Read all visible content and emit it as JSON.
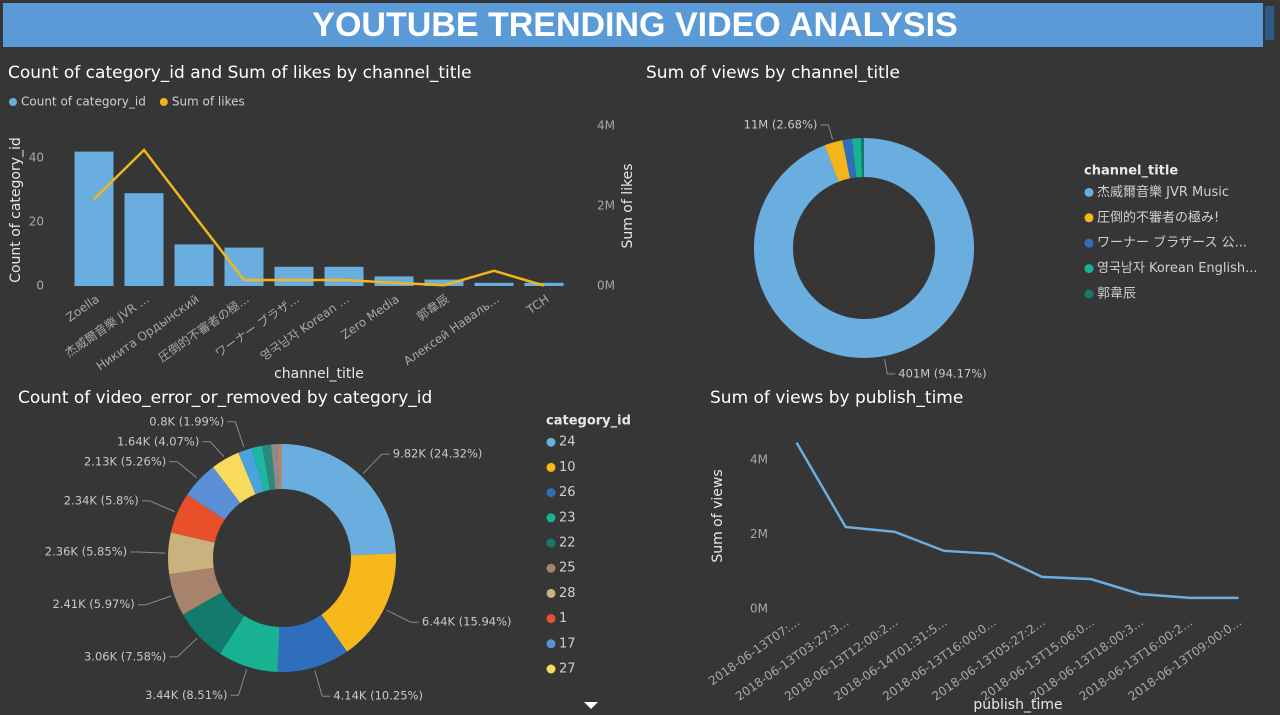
{
  "title": "YOUTUBE TRENDING VIDEO ANALYSIS",
  "chart_data": [
    {
      "type": "combo",
      "title": "Count of category_id and Sum of likes by channel_title",
      "categories": [
        "Zoella",
        "杰威爾音樂 JVR ...",
        "Никита Ордынский",
        "圧倒的不審者の極...",
        "ワーナー ブラザ...",
        "영국남자 Korean ...",
        "Zero Media",
        "郭韋辰",
        "Алексей Наваль...",
        "TCH"
      ],
      "series": [
        {
          "name": "Count of category_id",
          "type": "bar",
          "color": "#6aaee0",
          "values": [
            42,
            29,
            13,
            12,
            6,
            6,
            3,
            2,
            1,
            1
          ]
        },
        {
          "name": "Sum of likes",
          "type": "line",
          "axis": "y2",
          "color": "#f2b61c",
          "values": [
            2170000,
            3400000,
            1770000,
            150000,
            150000,
            150000,
            80000,
            20000,
            380000,
            10000
          ]
        }
      ],
      "xlabel": "channel_title",
      "ylabel": "Count of category_id",
      "y2label": "Sum of likes",
      "ylim": [
        0,
        50
      ],
      "yticks": [
        0,
        20,
        40
      ],
      "y2lim": [
        0,
        4000000
      ],
      "y2ticks": [
        {
          "value": 0,
          "label": "0M"
        },
        {
          "value": 2000000,
          "label": "2M"
        },
        {
          "value": 4000000,
          "label": "4M"
        }
      ]
    },
    {
      "type": "pie",
      "donut": true,
      "title": "Sum of views by channel_title",
      "legend_title": "channel_title",
      "categories": [
        "杰威爾音樂 JVR Music",
        "圧倒的不審者の極み!",
        "ワーナー ブラザース 公...",
        "영국남자 Korean English...",
        "郭韋辰"
      ],
      "values": [
        401000000,
        11400000,
        6000000,
        5500000,
        1900000
      ],
      "value_labels": [
        "401M (94.17%)",
        "11M (2.68%)",
        null,
        null,
        null
      ],
      "colors": [
        "#6aaee0",
        "#f2b61c",
        "#2f6eba",
        "#19b394",
        "#127b6c"
      ]
    },
    {
      "type": "pie",
      "donut": true,
      "title": "Count of video_error_or_removed by category_id",
      "legend_title": "category_id",
      "categories": [
        "24",
        "10",
        "26",
        "23",
        "22",
        "25",
        "28",
        "1",
        "17",
        "27",
        null,
        null,
        null,
        null,
        null
      ],
      "values": [
        9820,
        6440,
        4140,
        3440,
        3060,
        2410,
        2360,
        2340,
        2130,
        1640,
        800,
        600,
        500,
        350,
        270
      ],
      "value_labels": [
        "9.82K (24.32%)",
        "6.44K (15.94%)",
        "4.14K (10.25%)",
        "3.44K (8.51%)",
        "3.06K (7.58%)",
        "2.41K (5.97%)",
        "2.36K (5.85%)",
        "2.34K (5.8%)",
        "2.13K (5.26%)",
        "1.64K (4.07%)",
        "0.8K (1.99%)",
        null,
        null,
        null,
        null
      ],
      "colors": [
        "#6aaee0",
        "#f7b81c",
        "#2f6eba",
        "#19b394",
        "#127b6c",
        "#a6836a",
        "#c9b27d",
        "#e8502c",
        "#5b8fd6",
        "#f8da5c",
        "#4aa3df",
        "#1db6a0",
        "#2a8a7c",
        "#8c8c8c",
        "#b08870"
      ]
    },
    {
      "type": "line",
      "title": "Sum of views by publish_time",
      "categories": [
        "2018-06-13T07:...",
        "2018-06-13T03:27:3...",
        "2018-06-13T12:00:2...",
        "2018-06-14T01:31:5...",
        "2018-06-13T16:00:0...",
        "2018-06-13T05:27:2...",
        "2018-06-13T15:06:0...",
        "2018-06-13T18:00:3...",
        "2018-06-13T16:00:2...",
        "2018-06-13T09:00:0..."
      ],
      "values": [
        4460000,
        2200000,
        2070000,
        1560000,
        1480000,
        860000,
        800000,
        400000,
        300000,
        300000
      ],
      "color": "#6aaee0",
      "xlabel": "publish_time",
      "ylabel": "Sum of views",
      "ylim": [
        0,
        4800000
      ],
      "yticks": [
        {
          "value": 0,
          "label": "0M"
        },
        {
          "value": 2000000,
          "label": "2M"
        },
        {
          "value": 4000000,
          "label": "4M"
        }
      ]
    }
  ]
}
